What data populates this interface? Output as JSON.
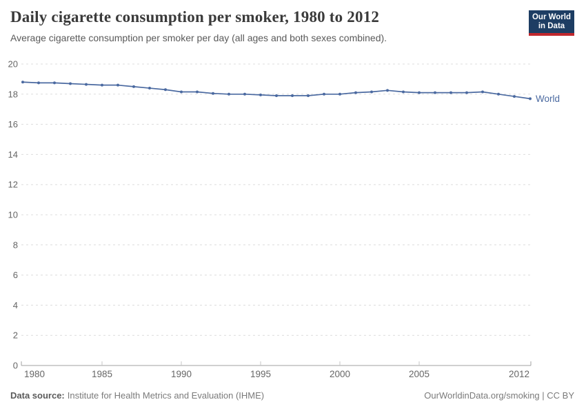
{
  "header": {
    "title": "Daily cigarette consumption per smoker, 1980 to 2012",
    "subtitle": "Average cigarette consumption per smoker per day (all ages and both sexes combined).",
    "logo": {
      "line1": "Our World",
      "line2": "in Data",
      "bg_color": "#1d3d63",
      "accent_color": "#c0272d"
    }
  },
  "chart_data": {
    "type": "line",
    "title": "Daily cigarette consumption per smoker, 1980 to 2012",
    "subtitle": "Average cigarette consumption per smoker per day (all ages and both sexes combined).",
    "xlabel": "",
    "ylabel": "",
    "ylim": [
      0,
      20
    ],
    "yticks": [
      0,
      2,
      4,
      6,
      8,
      10,
      12,
      14,
      16,
      18,
      20
    ],
    "xticks": [
      1980,
      1985,
      1990,
      1995,
      2000,
      2005,
      2012
    ],
    "grid": "horizontal-dashed",
    "legend_position": "end-of-line",
    "x": [
      1980,
      1981,
      1982,
      1983,
      1984,
      1985,
      1986,
      1987,
      1988,
      1989,
      1990,
      1991,
      1992,
      1993,
      1994,
      1995,
      1996,
      1997,
      1998,
      1999,
      2000,
      2001,
      2002,
      2003,
      2004,
      2005,
      2006,
      2007,
      2008,
      2009,
      2010,
      2011,
      2012
    ],
    "series": [
      {
        "name": "World",
        "color": "#4a69a0",
        "marker": "circle",
        "values": [
          18.8,
          18.75,
          18.75,
          18.7,
          18.65,
          18.6,
          18.6,
          18.5,
          18.4,
          18.3,
          18.15,
          18.15,
          18.05,
          18.0,
          18.0,
          17.95,
          17.9,
          17.9,
          17.9,
          18.0,
          18.0,
          18.1,
          18.15,
          18.25,
          18.15,
          18.1,
          18.1,
          18.1,
          18.1,
          18.15,
          18.0,
          17.85,
          17.7
        ]
      }
    ],
    "colors": {
      "gridline": "#dcdcdc",
      "axis": "#a1a1a1",
      "tick_label": "#666666"
    }
  },
  "footer": {
    "source_label": "Data source:",
    "source_value": "Institute for Health Metrics and Evaluation (IHME)",
    "right_text": "OurWorldinData.org/smoking | CC BY"
  }
}
